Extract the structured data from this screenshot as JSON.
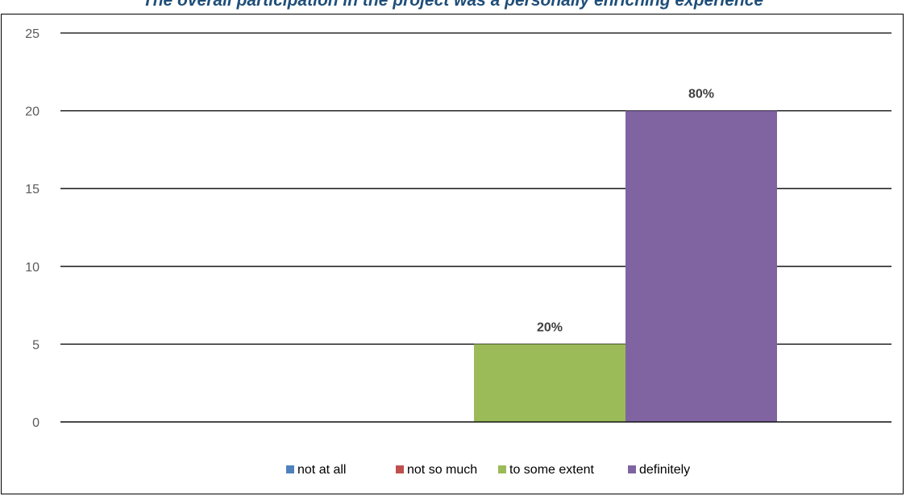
{
  "chart_data": {
    "type": "bar",
    "title": "The overall participation in the project was a personally enriching experience",
    "xlabel": "",
    "ylabel": "",
    "ylim": [
      0,
      25
    ],
    "yticks": [
      0,
      5,
      10,
      15,
      20,
      25
    ],
    "grid": true,
    "legend_position": "bottom",
    "series": [
      {
        "name": "not at all",
        "value": 0,
        "label": "",
        "color": "#4f81bd"
      },
      {
        "name": "not so much",
        "value": 0,
        "label": "",
        "color": "#c0504d"
      },
      {
        "name": "to some extent",
        "value": 5,
        "label": "20%",
        "color": "#9bbb59"
      },
      {
        "name": "definitely",
        "value": 20,
        "label": "80%",
        "color": "#8064a2"
      }
    ]
  }
}
